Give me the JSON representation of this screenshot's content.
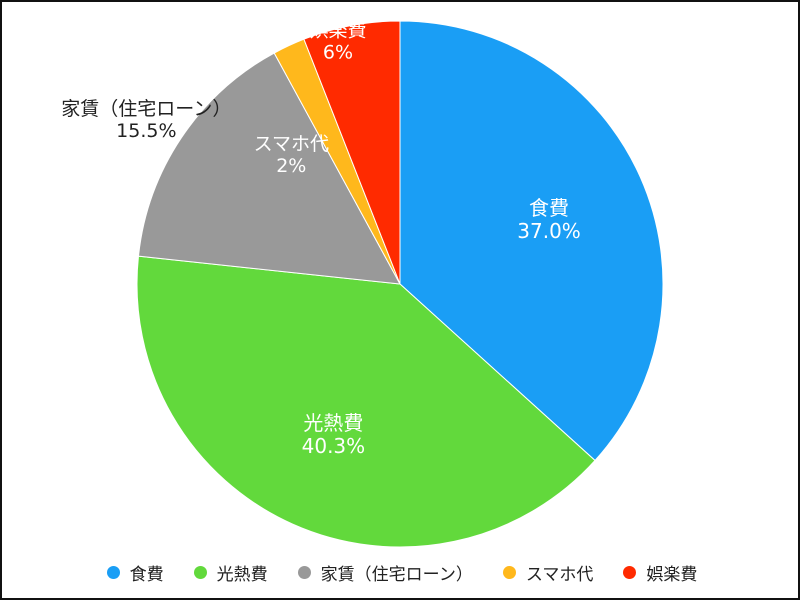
{
  "chart_data": {
    "type": "pie",
    "title": "",
    "slices": [
      {
        "label": "食費",
        "value": 37.0,
        "value_label": "37.0%",
        "color": "#1a9ef5"
      },
      {
        "label": "光熱費",
        "value": 40.3,
        "value_label": "40.3%",
        "color": "#62d93c"
      },
      {
        "label": "家賃（住宅ローン）",
        "value": 15.5,
        "value_label": "15.5%",
        "color": "#999999"
      },
      {
        "label": "スマホ代",
        "value": 2,
        "value_label": "2%",
        "color": "#ffb81c"
      },
      {
        "label": "娯楽費",
        "value": 6,
        "value_label": "6%",
        "color": "#ff2a00"
      }
    ],
    "start_angle": "12 o'clock",
    "direction": "clockwise",
    "legend_position": "bottom"
  }
}
